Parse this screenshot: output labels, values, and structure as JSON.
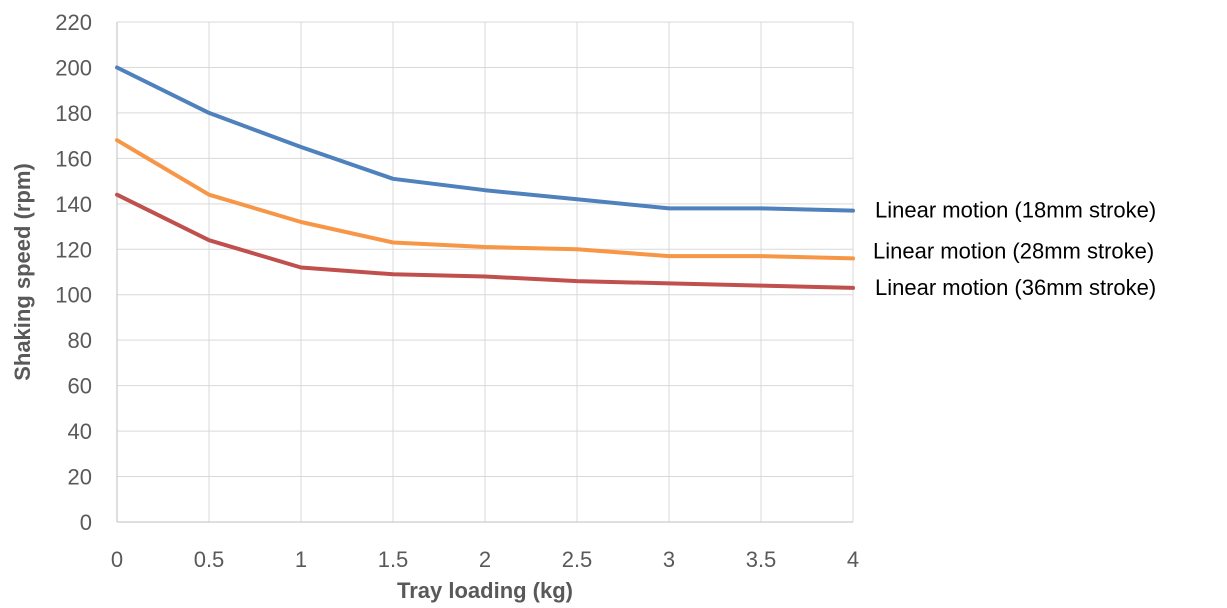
{
  "chart_data": {
    "type": "line",
    "xlabel": "Tray loading (kg)",
    "ylabel": "Shaking speed (rpm)",
    "x": [
      0,
      0.5,
      1,
      1.5,
      2,
      2.5,
      3,
      3.5,
      4
    ],
    "xlim": [
      0,
      4
    ],
    "ylim": [
      0,
      220
    ],
    "x_ticks": [
      "0",
      "0.5",
      "1",
      "1.5",
      "2",
      "2.5",
      "3",
      "3.5",
      "4"
    ],
    "y_ticks": [
      "0",
      "20",
      "40",
      "60",
      "80",
      "100",
      "120",
      "140",
      "160",
      "180",
      "200",
      "220"
    ],
    "grid": true,
    "legend": "labels at right end of each line",
    "series": [
      {
        "name": "Linear motion (18mm stroke)",
        "color": "#4f81bd",
        "values": [
          200,
          180,
          165,
          151,
          146,
          142,
          138,
          138,
          137
        ]
      },
      {
        "name": "Linear motion (28mm stroke)",
        "color": "#f79646",
        "values": [
          168,
          144,
          132,
          123,
          121,
          120,
          117,
          117,
          116
        ]
      },
      {
        "name": "Linear motion (36mm stroke)",
        "color": "#c0504d",
        "values": [
          144,
          124,
          112,
          109,
          108,
          106,
          105,
          104,
          103
        ]
      }
    ]
  }
}
